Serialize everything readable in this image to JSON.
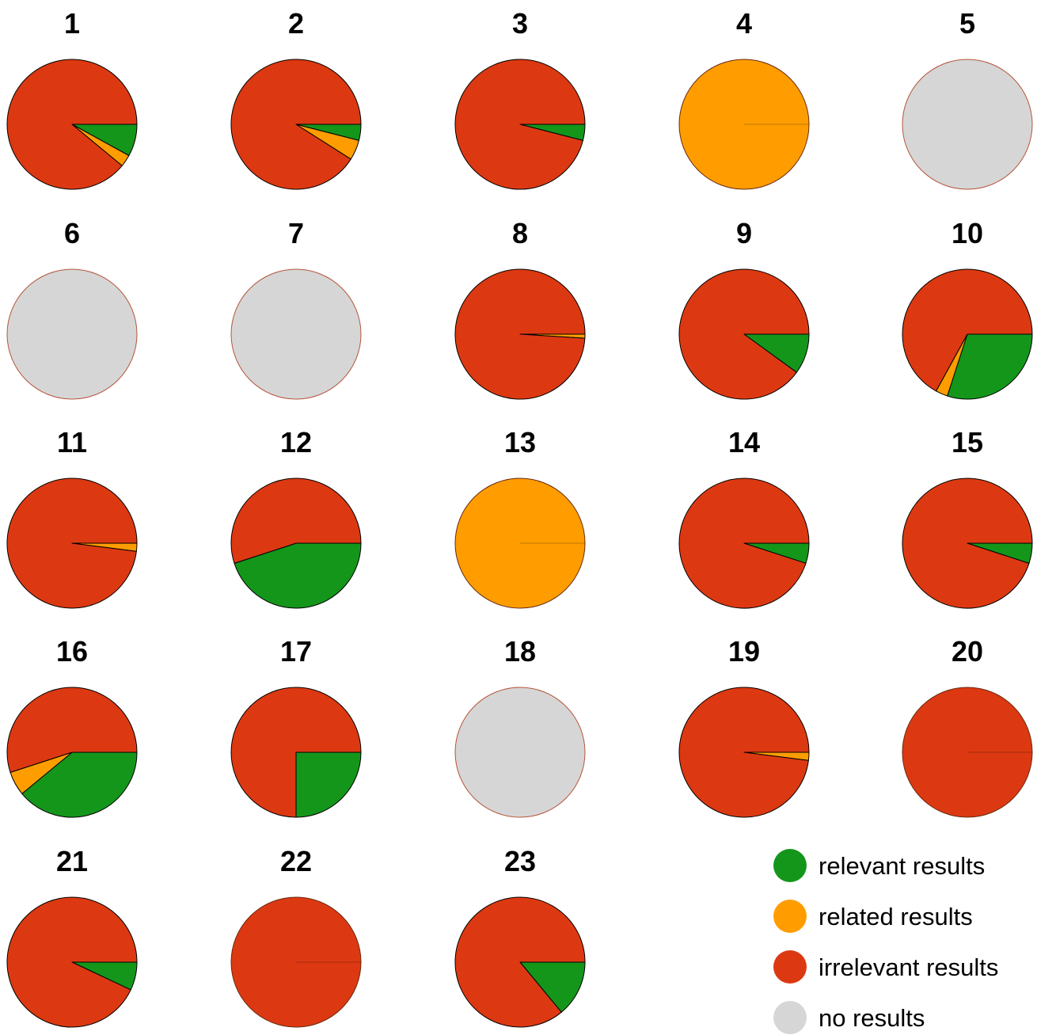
{
  "chart_data": {
    "type": "pie",
    "series_order": [
      "relevant",
      "related",
      "irrelevant",
      "none"
    ],
    "categories": [
      {
        "key": "relevant",
        "label": "relevant results",
        "color": "#14961b"
      },
      {
        "key": "related",
        "label": "related results",
        "color": "#ff9d00"
      },
      {
        "key": "irrelevant",
        "label": "irrelevant results",
        "color": "#dc3912"
      },
      {
        "key": "none",
        "label": "no results",
        "color": "#d6d6d6"
      }
    ],
    "legend_position": "bottom-right",
    "pies": [
      {
        "title": "1",
        "values": {
          "relevant": 8,
          "related": 3,
          "irrelevant": 89,
          "none": 0
        }
      },
      {
        "title": "2",
        "values": {
          "relevant": 4,
          "related": 5,
          "irrelevant": 91,
          "none": 0
        }
      },
      {
        "title": "3",
        "values": {
          "relevant": 4,
          "related": 0,
          "irrelevant": 96,
          "none": 0
        }
      },
      {
        "title": "4",
        "values": {
          "relevant": 0,
          "related": 100,
          "irrelevant": 0,
          "none": 0
        }
      },
      {
        "title": "5",
        "values": {
          "relevant": 0,
          "related": 0,
          "irrelevant": 0,
          "none": 100
        }
      },
      {
        "title": "6",
        "values": {
          "relevant": 0,
          "related": 0,
          "irrelevant": 0,
          "none": 100
        }
      },
      {
        "title": "7",
        "values": {
          "relevant": 0,
          "related": 0,
          "irrelevant": 0,
          "none": 100
        }
      },
      {
        "title": "8",
        "values": {
          "relevant": 0,
          "related": 1,
          "irrelevant": 99,
          "none": 0
        }
      },
      {
        "title": "9",
        "values": {
          "relevant": 10,
          "related": 0,
          "irrelevant": 90,
          "none": 0
        }
      },
      {
        "title": "10",
        "values": {
          "relevant": 30,
          "related": 3,
          "irrelevant": 67,
          "none": 0
        }
      },
      {
        "title": "11",
        "values": {
          "relevant": 0,
          "related": 2,
          "irrelevant": 98,
          "none": 0
        }
      },
      {
        "title": "12",
        "values": {
          "relevant": 45,
          "related": 0,
          "irrelevant": 55,
          "none": 0
        }
      },
      {
        "title": "13",
        "values": {
          "relevant": 0,
          "related": 100,
          "irrelevant": 0,
          "none": 0
        }
      },
      {
        "title": "14",
        "values": {
          "relevant": 5,
          "related": 0,
          "irrelevant": 95,
          "none": 0
        }
      },
      {
        "title": "15",
        "values": {
          "relevant": 5,
          "related": 0,
          "irrelevant": 95,
          "none": 0
        }
      },
      {
        "title": "16",
        "values": {
          "relevant": 39,
          "related": 6,
          "irrelevant": 55,
          "none": 0
        }
      },
      {
        "title": "17",
        "values": {
          "relevant": 25,
          "related": 0,
          "irrelevant": 75,
          "none": 0
        }
      },
      {
        "title": "18",
        "values": {
          "relevant": 0,
          "related": 0,
          "irrelevant": 0,
          "none": 100
        }
      },
      {
        "title": "19",
        "values": {
          "relevant": 0,
          "related": 2,
          "irrelevant": 98,
          "none": 0
        }
      },
      {
        "title": "20",
        "values": {
          "relevant": 0,
          "related": 0,
          "irrelevant": 100,
          "none": 0
        }
      },
      {
        "title": "21",
        "values": {
          "relevant": 7,
          "related": 0,
          "irrelevant": 93,
          "none": 0
        }
      },
      {
        "title": "22",
        "values": {
          "relevant": 0,
          "related": 0,
          "irrelevant": 100,
          "none": 0
        }
      },
      {
        "title": "23",
        "values": {
          "relevant": 14,
          "related": 0,
          "irrelevant": 86,
          "none": 0
        }
      }
    ]
  }
}
